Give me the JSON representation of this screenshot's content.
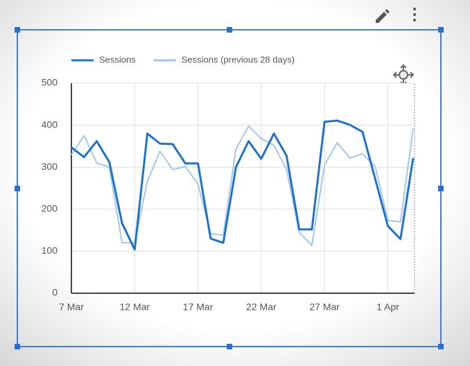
{
  "chart_data": {
    "type": "line",
    "categories": [
      "7 Mar",
      null,
      null,
      null,
      null,
      "12 Mar",
      null,
      null,
      null,
      null,
      "17 Mar",
      null,
      null,
      null,
      null,
      "22 Mar",
      null,
      null,
      null,
      null,
      "27 Mar",
      null,
      null,
      null,
      null,
      "1 Apr",
      null,
      null
    ],
    "series": [
      {
        "name": "Sessions",
        "color": "#1e73c8",
        "values": [
          347,
          324,
          362,
          312,
          167,
          104,
          380,
          356,
          355,
          309,
          309,
          130,
          120,
          300,
          362,
          320,
          380,
          327,
          152,
          152,
          408,
          411,
          401,
          384,
          272,
          160,
          129,
          322
        ]
      },
      {
        "name": "Sessions (previous 28 days)",
        "color": "#a3c7ec",
        "values": [
          329,
          375,
          310,
          300,
          120,
          120,
          266,
          338,
          294,
          302,
          260,
          142,
          138,
          343,
          398,
          368,
          352,
          294,
          145,
          114,
          305,
          358,
          322,
          332,
          302,
          173,
          170,
          392
        ]
      }
    ],
    "ylim": [
      0,
      500
    ],
    "yticks": [
      0,
      100,
      200,
      300,
      400,
      500
    ],
    "grid": true
  }
}
